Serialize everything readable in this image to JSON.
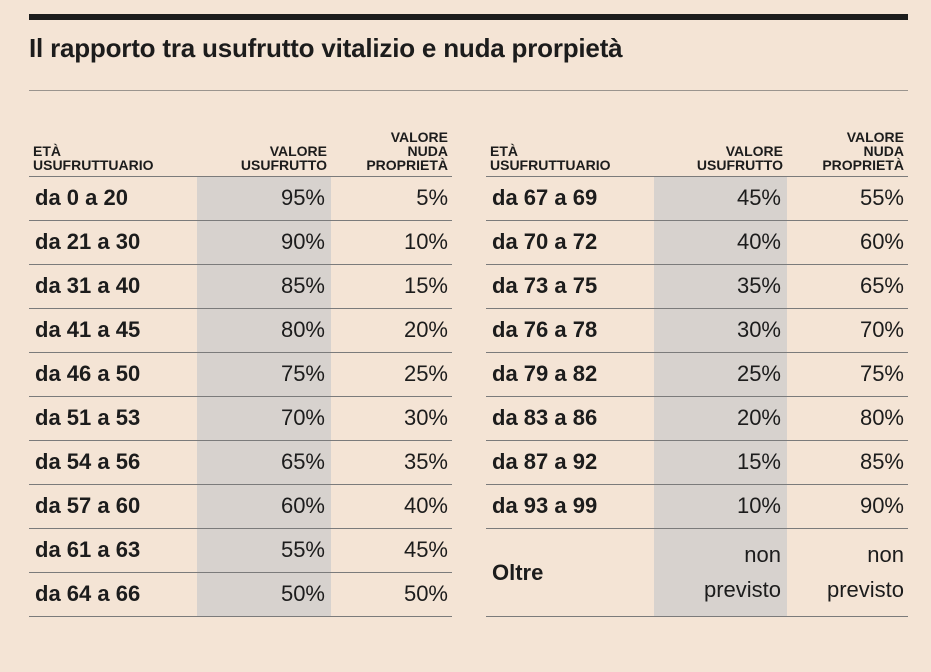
{
  "title": "Il rapporto tra usufrutto vitalizio e nuda prorpietà",
  "headers": {
    "age": [
      "ETÀ",
      "USUFRUTTUARIO"
    ],
    "usufrutto": [
      "VALORE",
      "USUFRUTTO"
    ],
    "nuda": [
      "VALORE",
      "NUDA",
      "PROPRIETÀ"
    ]
  },
  "left_rows": [
    {
      "age": "da 0 a 20",
      "usufrutto": "95%",
      "nuda": "5%"
    },
    {
      "age": "da 21 a 30",
      "usufrutto": "90%",
      "nuda": "10%"
    },
    {
      "age": "da 31 a 40",
      "usufrutto": "85%",
      "nuda": "15%"
    },
    {
      "age": "da 41 a 45",
      "usufrutto": "80%",
      "nuda": "20%"
    },
    {
      "age": "da 46 a 50",
      "usufrutto": "75%",
      "nuda": "25%"
    },
    {
      "age": "da 51 a 53",
      "usufrutto": "70%",
      "nuda": "30%"
    },
    {
      "age": "da 54 a 56",
      "usufrutto": "65%",
      "nuda": "35%"
    },
    {
      "age": "da 57 a 60",
      "usufrutto": "60%",
      "nuda": "40%"
    },
    {
      "age": "da 61 a 63",
      "usufrutto": "55%",
      "nuda": "45%"
    },
    {
      "age": "da 64 a 66",
      "usufrutto": "50%",
      "nuda": "50%"
    }
  ],
  "right_rows": [
    {
      "age": "da 67 a 69",
      "usufrutto": "45%",
      "nuda": "55%"
    },
    {
      "age": "da 70 a 72",
      "usufrutto": "40%",
      "nuda": "60%"
    },
    {
      "age": "da 73 a 75",
      "usufrutto": "35%",
      "nuda": "65%"
    },
    {
      "age": "da 76 a 78",
      "usufrutto": "30%",
      "nuda": "70%"
    },
    {
      "age": "da 79 a 82",
      "usufrutto": "25%",
      "nuda": "75%"
    },
    {
      "age": "da 83 a 86",
      "usufrutto": "20%",
      "nuda": "80%"
    },
    {
      "age": "da 87 a 92",
      "usufrutto": "15%",
      "nuda": "85%"
    },
    {
      "age": "da 93 a 99",
      "usufrutto": "10%",
      "nuda": "90%"
    },
    {
      "age": "Oltre",
      "usufrutto": [
        "non",
        "previsto"
      ],
      "nuda": [
        "non",
        "previsto"
      ]
    }
  ],
  "colors": {
    "background": "#f4e4d5",
    "shaded_column": "#d7d2ce",
    "text": "#1c1c1c"
  }
}
